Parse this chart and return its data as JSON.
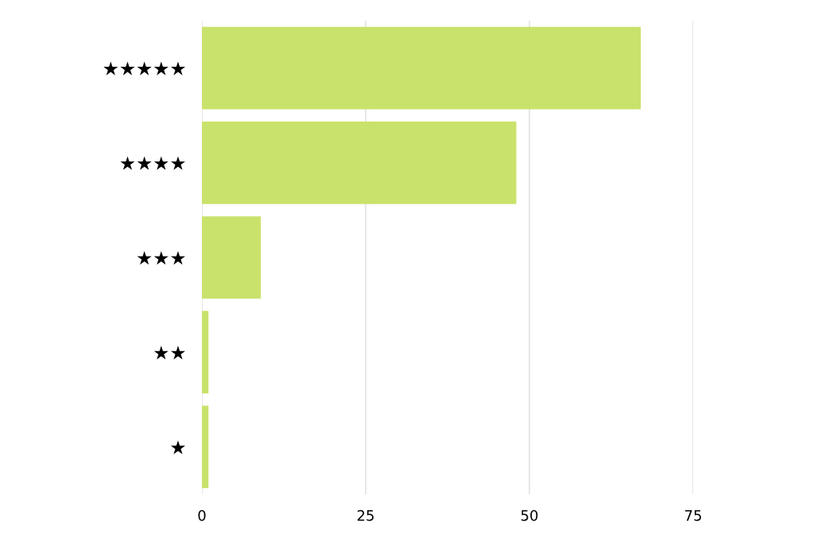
{
  "chart_data": {
    "type": "bar",
    "orientation": "horizontal",
    "categories": [
      "★★★★★",
      "★★★★",
      "★★★",
      "★★",
      "★"
    ],
    "values": [
      67,
      48,
      9,
      1,
      1
    ],
    "color": "#c9e26b",
    "xlim": [
      0,
      75
    ],
    "xticks": [
      0,
      25,
      50,
      75
    ],
    "grid": "x"
  }
}
